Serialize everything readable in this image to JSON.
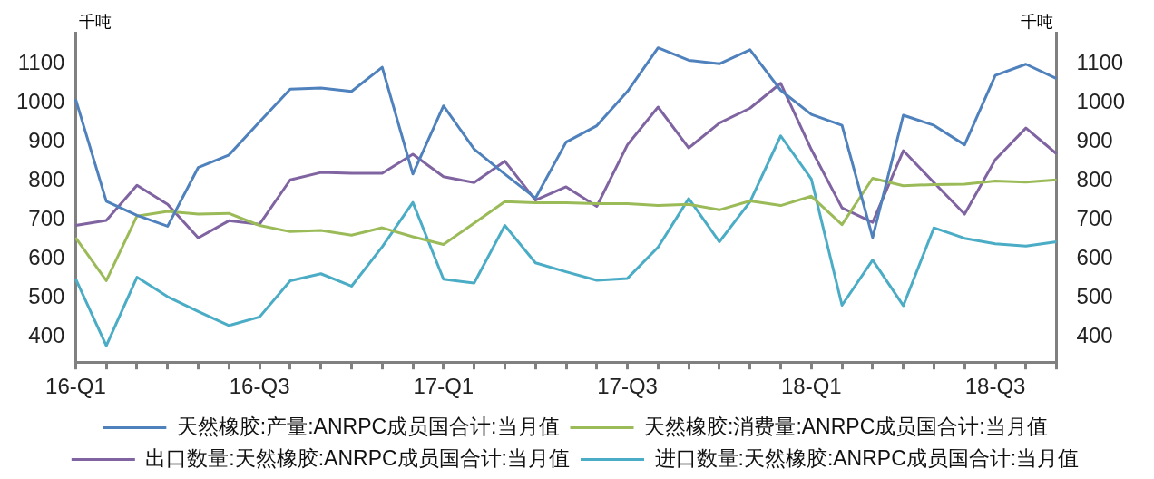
{
  "chart_data": {
    "type": "line",
    "ylabel": "千吨",
    "y2label": "千吨",
    "categories": [
      "16-Q1",
      null,
      null,
      null,
      null,
      null,
      "16-Q3",
      null,
      null,
      null,
      null,
      null,
      "17-Q1",
      null,
      null,
      null,
      null,
      null,
      "17-Q3",
      null,
      null,
      null,
      null,
      null,
      "18-Q1",
      null,
      null,
      null,
      null,
      null,
      "18-Q3",
      null,
      null
    ],
    "ylim": [
      335,
      1180
    ],
    "yticks": [
      400,
      500,
      600,
      700,
      800,
      900,
      1000,
      1100
    ],
    "y2lim": [
      335,
      1180
    ],
    "y2ticks": [
      400,
      500,
      600,
      700,
      800,
      900,
      1000,
      1100
    ],
    "grid": false,
    "legend": "bottom",
    "marker": "none",
    "line_style": "solid",
    "series": [
      {
        "name": "天然橡胶:产量:ANRPC成员国合计:当月值",
        "color": "#4f81bd",
        "values": [
          1010,
          748,
          712,
          684,
          835,
          867,
          952,
          1036,
          1039,
          1030,
          1092,
          818,
          993,
          882,
          818,
          756,
          900,
          942,
          1030,
          1142,
          1110,
          1101,
          1137,
          1033,
          971,
          943,
          655,
          969,
          943,
          893,
          1071,
          1100,
          1063
        ]
      },
      {
        "name": "天然橡胶:消费量:ANRPC成员国合计:当月值",
        "color": "#9bbb59",
        "values": [
          654,
          544,
          710,
          722,
          715,
          717,
          686,
          670,
          673,
          661,
          680,
          657,
          637,
          692,
          747,
          744,
          744,
          742,
          742,
          737,
          740,
          726,
          749,
          737,
          761,
          688,
          807,
          788,
          791,
          792,
          800,
          797,
          803
        ]
      },
      {
        "name": "出口数量:天然橡胶:ANRPC成员国合计:当月值",
        "color": "#8064a2",
        "values": [
          686,
          699,
          789,
          740,
          654,
          698,
          689,
          803,
          822,
          820,
          820,
          869,
          811,
          796,
          851,
          751,
          785,
          735,
          893,
          990,
          885,
          949,
          987,
          1051,
          881,
          731,
          694,
          878,
          796,
          715,
          855,
          936,
          870
        ]
      },
      {
        "name": "进口数量:天然橡胶:ANRPC成员国合计:当月值",
        "color": "#4bacc6",
        "values": [
          549,
          377,
          553,
          503,
          465,
          429,
          451,
          544,
          562,
          530,
          631,
          745,
          548,
          538,
          686,
          590,
          567,
          545,
          550,
          630,
          755,
          644,
          747,
          916,
          805,
          481,
          597,
          480,
          680,
          653,
          639,
          633,
          644
        ]
      }
    ]
  }
}
